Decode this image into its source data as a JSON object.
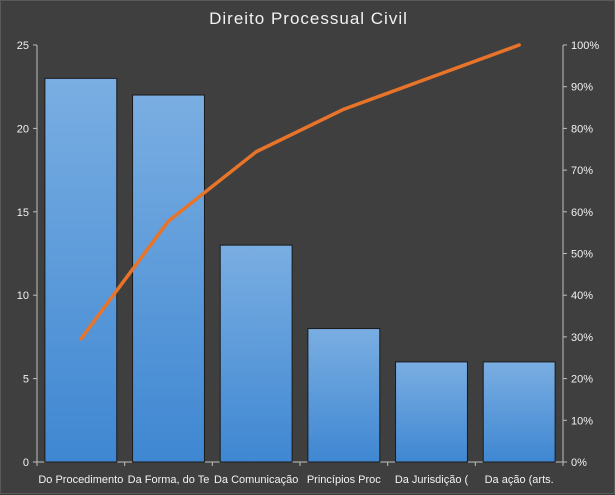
{
  "chart_data": {
    "type": "bar",
    "title": "Direito Processual Civil",
    "categories": [
      "Do Procedimento",
      "Da Forma, do Te",
      "Da Comunicação",
      "Princípios Proc",
      "Da Jurisdição (",
      "Da ação (arts."
    ],
    "series": [
      {
        "type": "bar",
        "axis": "left",
        "values": [
          23,
          22,
          13,
          8,
          6,
          6
        ]
      },
      {
        "type": "line",
        "axis": "right",
        "values": [
          29.5,
          57.8,
          74.4,
          84.6,
          92.3,
          100
        ]
      }
    ],
    "ylim": [
      0,
      25
    ],
    "yticks": [
      "0",
      "5",
      "10",
      "15",
      "20",
      "25"
    ],
    "y2lim": [
      0,
      100
    ],
    "y2ticks": [
      "0%",
      "10%",
      "20%",
      "30%",
      "40%",
      "50%",
      "60%",
      "70%",
      "80%",
      "90%",
      "100%"
    ],
    "grid": false,
    "legend": "none",
    "colors": {
      "bar": "#4f94d6",
      "line": "#e8742a",
      "background": "#3f3f3f",
      "text": "#f2f2f2"
    }
  }
}
